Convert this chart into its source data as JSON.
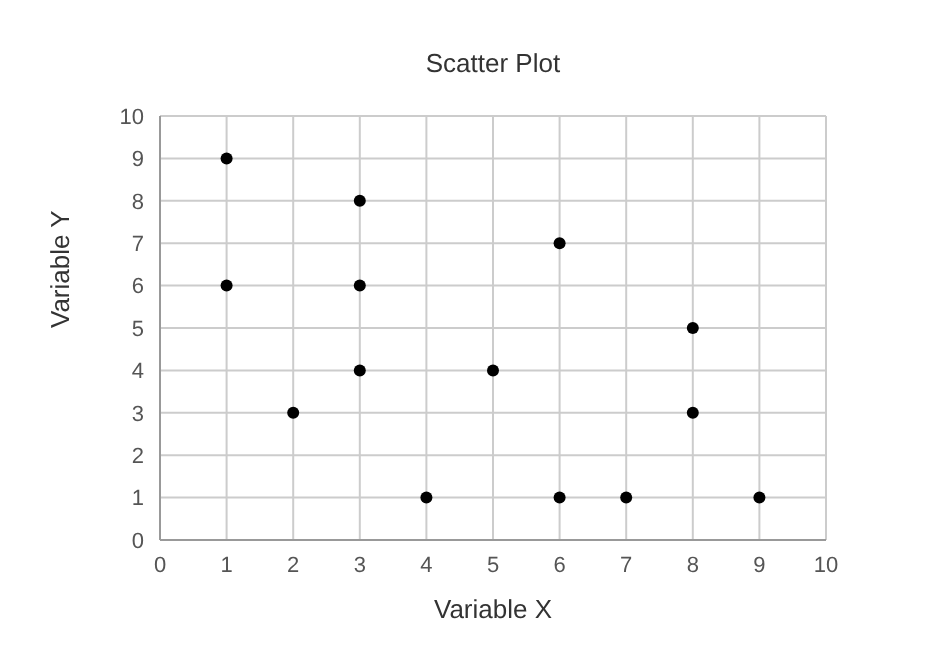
{
  "chart_data": {
    "type": "scatter",
    "title": "Scatter Plot",
    "xlabel": "Variable X",
    "ylabel": "Variable Y",
    "x": [
      1,
      1,
      2,
      3,
      3,
      3,
      4,
      5,
      6,
      6,
      7,
      8,
      8,
      9
    ],
    "series": [
      {
        "color": "#000000",
        "values": [
          9,
          6,
          3,
          8,
          6,
          4,
          1,
          4,
          7,
          1,
          1,
          5,
          3,
          1
        ]
      }
    ],
    "xlim": [
      0,
      10
    ],
    "xticks": [
      0,
      1,
      2,
      3,
      4,
      5,
      6,
      7,
      8,
      9,
      10
    ],
    "ylim": [
      0,
      10
    ],
    "yticks": [
      0,
      1,
      2,
      3,
      4,
      5,
      6,
      7,
      8,
      9,
      10
    ],
    "grid": true,
    "marker": "circle",
    "legend": false
  }
}
